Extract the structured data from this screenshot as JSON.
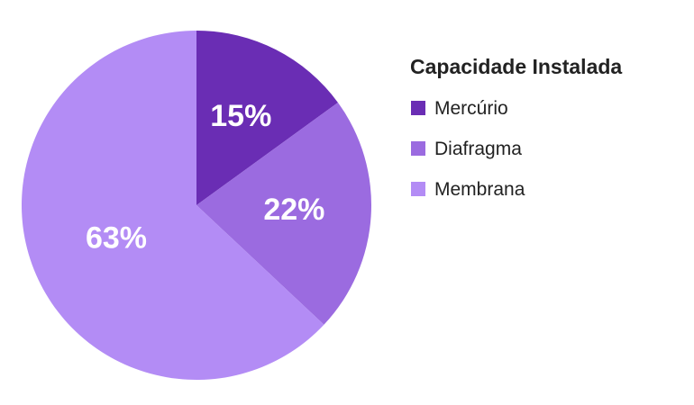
{
  "chart_data": {
    "type": "pie",
    "title": "",
    "legend_title": "Capacidade Instalada",
    "legend_position": "right",
    "categories": [
      "Mercúrio",
      "Diafragma",
      "Membrana"
    ],
    "values": [
      15,
      22,
      63
    ],
    "labels": [
      "15%",
      "22%",
      "63%"
    ],
    "colors": [
      "#6a2db4",
      "#9b6be0",
      "#b38cf5"
    ],
    "start_angle_deg": 0,
    "direction": "clockwise"
  }
}
